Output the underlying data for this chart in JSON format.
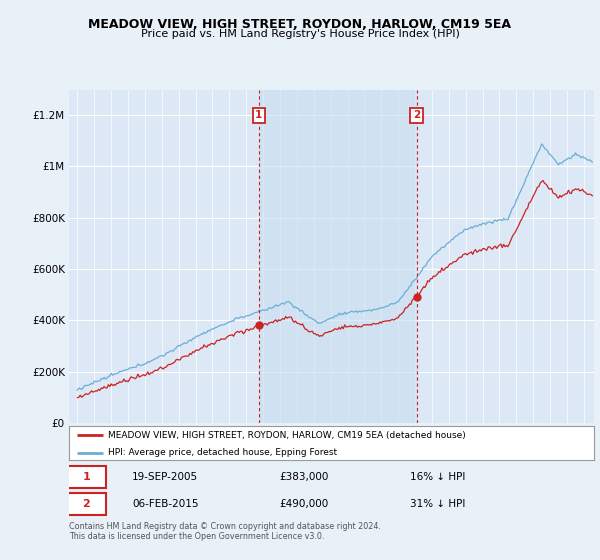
{
  "title1": "MEADOW VIEW, HIGH STREET, ROYDON, HARLOW, CM19 5EA",
  "title2": "Price paid vs. HM Land Registry's House Price Index (HPI)",
  "legend_label1": "MEADOW VIEW, HIGH STREET, ROYDON, HARLOW, CM19 5EA (detached house)",
  "legend_label2": "HPI: Average price, detached house, Epping Forest",
  "sale1_date": "19-SEP-2005",
  "sale1_price": 383000,
  "sale1_pct": "16% ↓ HPI",
  "sale2_date": "06-FEB-2015",
  "sale2_price": 490000,
  "sale2_pct": "31% ↓ HPI",
  "footer": "Contains HM Land Registry data © Crown copyright and database right 2024.\nThis data is licensed under the Open Government Licence v3.0.",
  "background_color": "#e8f0f8",
  "plot_bg_color": "#dce8f5",
  "shade_color": "#c8dff0",
  "hpi_color": "#6baed6",
  "price_color": "#cc2222",
  "dashed_line_color": "#cc2222",
  "sale1_x": 2005.75,
  "sale2_x": 2015.09,
  "y_min": 0,
  "y_max": 1300000,
  "x_min": 1994.5,
  "x_max": 2025.6
}
